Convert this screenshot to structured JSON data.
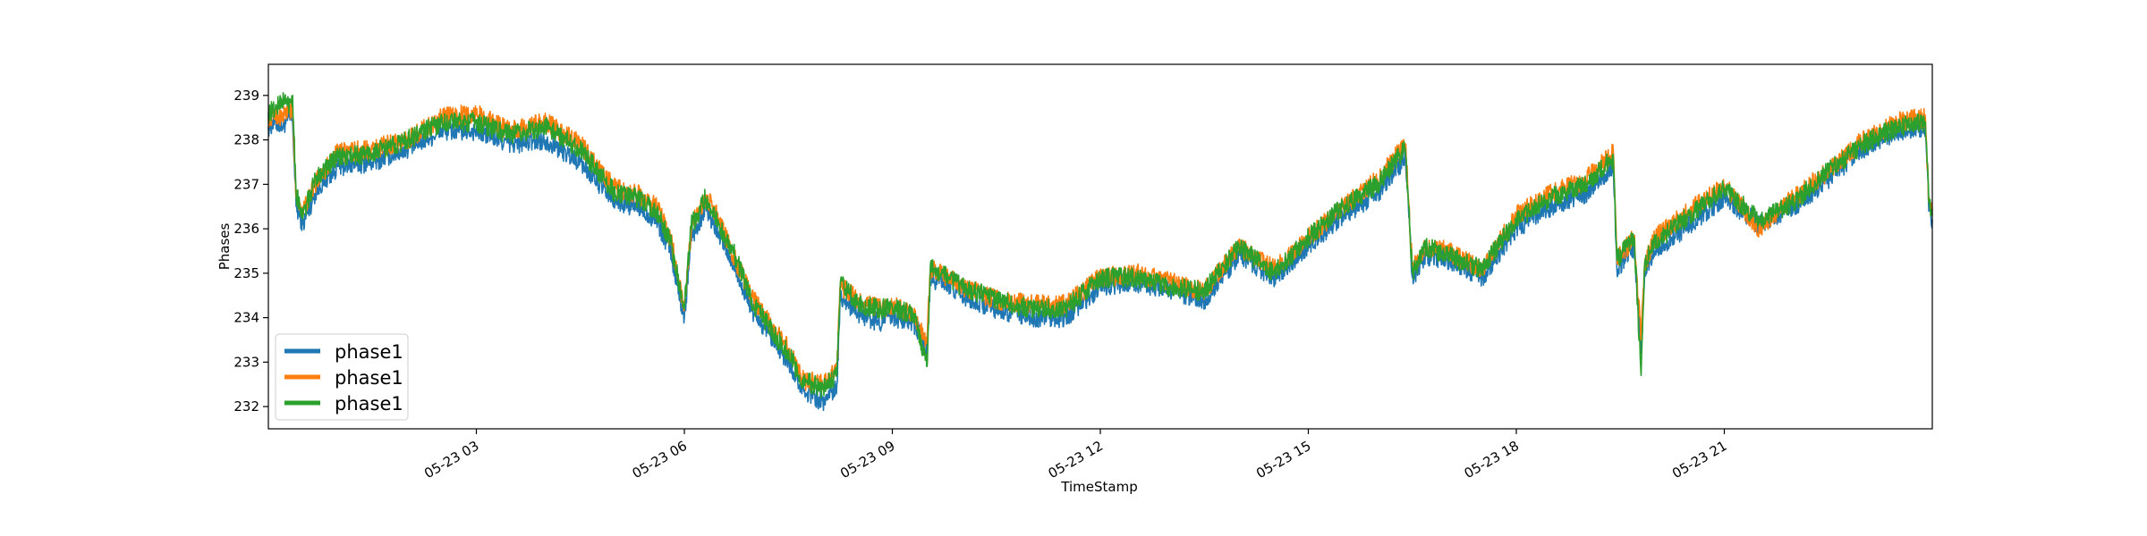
{
  "chart_data": {
    "type": "line",
    "title": "",
    "xlabel": "TimeStamp",
    "ylabel": "Phases",
    "x_range_hours": [
      0.0,
      24.0
    ],
    "ylim": [
      231.5,
      239.7
    ],
    "yticks": [
      232,
      233,
      234,
      235,
      236,
      237,
      238,
      239
    ],
    "xticks": [
      {
        "hour": 3,
        "label": "05-23 03"
      },
      {
        "hour": 6,
        "label": "05-23 06"
      },
      {
        "hour": 9,
        "label": "05-23 09"
      },
      {
        "hour": 12,
        "label": "05-23 12"
      },
      {
        "hour": 15,
        "label": "05-23 15"
      },
      {
        "hour": 18,
        "label": "05-23 18"
      },
      {
        "hour": 21,
        "label": "05-23 21"
      }
    ],
    "grid": false,
    "legend_position": "lower-left",
    "x_hours": [
      0.0,
      0.1,
      0.2,
      0.3,
      0.35,
      0.4,
      0.5,
      0.7,
      1.0,
      1.5,
      2.0,
      2.5,
      3.0,
      3.5,
      4.0,
      4.5,
      5.0,
      5.3,
      5.6,
      5.8,
      6.0,
      6.1,
      6.2,
      6.3,
      6.4,
      6.5,
      6.7,
      7.0,
      7.3,
      7.5,
      7.7,
      8.0,
      8.2,
      8.25,
      8.5,
      8.8,
      9.0,
      9.3,
      9.5,
      9.55,
      9.7,
      10.0,
      10.5,
      11.0,
      11.5,
      12.0,
      12.5,
      13.0,
      13.5,
      14.0,
      14.5,
      15.0,
      15.5,
      16.0,
      16.4,
      16.5,
      16.7,
      17.0,
      17.5,
      18.0,
      18.5,
      19.0,
      19.4,
      19.45,
      19.7,
      19.8,
      19.85,
      20.0,
      20.5,
      21.0,
      21.5,
      22.0,
      22.5,
      23.0,
      23.5,
      23.9,
      23.95,
      24.0
    ],
    "series": [
      {
        "name": "phase1",
        "color": "#1f77b4",
        "values": [
          238.3,
          238.4,
          238.3,
          238.5,
          238.4,
          236.5,
          236.1,
          236.9,
          237.4,
          237.5,
          237.8,
          238.2,
          238.2,
          237.9,
          238.0,
          237.5,
          236.6,
          236.5,
          236.2,
          235.5,
          234.0,
          235.8,
          236.1,
          236.5,
          236.2,
          235.9,
          235.2,
          234.1,
          233.4,
          233.0,
          232.4,
          232.1,
          232.5,
          234.5,
          234.1,
          233.9,
          234.0,
          233.9,
          233.3,
          234.8,
          234.9,
          234.5,
          234.2,
          234.0,
          234.0,
          234.7,
          234.8,
          234.6,
          234.4,
          235.4,
          234.9,
          235.6,
          236.3,
          236.8,
          237.6,
          234.9,
          235.4,
          235.3,
          234.9,
          236.0,
          236.5,
          236.8,
          237.4,
          235.1,
          235.6,
          233.2,
          235.0,
          235.5,
          236.1,
          236.7,
          236.1,
          236.5,
          237.1,
          237.8,
          238.2,
          238.3,
          236.4,
          236.2
        ]
      },
      {
        "name": "phase1",
        "color": "#ff7f0e",
        "values": [
          238.5,
          238.6,
          238.5,
          238.7,
          238.6,
          236.7,
          236.4,
          237.1,
          237.7,
          237.8,
          238.0,
          238.5,
          238.6,
          238.2,
          238.4,
          237.9,
          236.9,
          236.8,
          236.5,
          235.8,
          234.2,
          236.0,
          236.4,
          236.7,
          236.5,
          236.2,
          235.4,
          234.4,
          233.7,
          233.3,
          232.6,
          232.5,
          232.8,
          234.7,
          234.4,
          234.2,
          234.3,
          234.1,
          233.5,
          235.1,
          235.0,
          234.7,
          234.4,
          234.3,
          234.3,
          234.9,
          235.0,
          234.8,
          234.6,
          235.6,
          235.1,
          235.8,
          236.5,
          237.1,
          237.9,
          235.1,
          235.6,
          235.5,
          235.1,
          236.3,
          236.8,
          237.1,
          237.7,
          235.3,
          235.8,
          233.5,
          235.2,
          235.8,
          236.4,
          237.0,
          236.0,
          236.7,
          237.3,
          238.0,
          238.4,
          238.5,
          236.6,
          236.4
        ]
      },
      {
        "name": "phase1",
        "color": "#2ca02c",
        "values": [
          238.6,
          238.7,
          238.9,
          238.8,
          239.0,
          236.8,
          236.3,
          237.2,
          237.6,
          237.7,
          238.0,
          238.4,
          238.4,
          238.1,
          238.3,
          237.8,
          236.8,
          236.7,
          236.4,
          235.7,
          234.2,
          236.1,
          236.3,
          236.7,
          236.4,
          236.1,
          235.5,
          234.3,
          233.6,
          233.2,
          232.6,
          232.4,
          232.7,
          234.8,
          234.3,
          234.2,
          234.2,
          234.1,
          232.9,
          235.2,
          235.0,
          234.7,
          234.4,
          234.2,
          234.2,
          234.9,
          234.9,
          234.7,
          234.6,
          235.6,
          235.0,
          235.8,
          236.5,
          237.0,
          237.8,
          235.0,
          235.6,
          235.4,
          235.1,
          236.2,
          236.7,
          237.0,
          237.6,
          235.3,
          235.8,
          232.7,
          235.2,
          235.7,
          236.3,
          236.9,
          236.2,
          236.6,
          237.3,
          237.9,
          238.3,
          238.4,
          236.6,
          236.3
        ]
      }
    ],
    "legend": [
      {
        "label": "phase1",
        "color": "#1f77b4"
      },
      {
        "label": "phase1",
        "color": "#ff7f0e"
      },
      {
        "label": "phase1",
        "color": "#2ca02c"
      }
    ]
  }
}
